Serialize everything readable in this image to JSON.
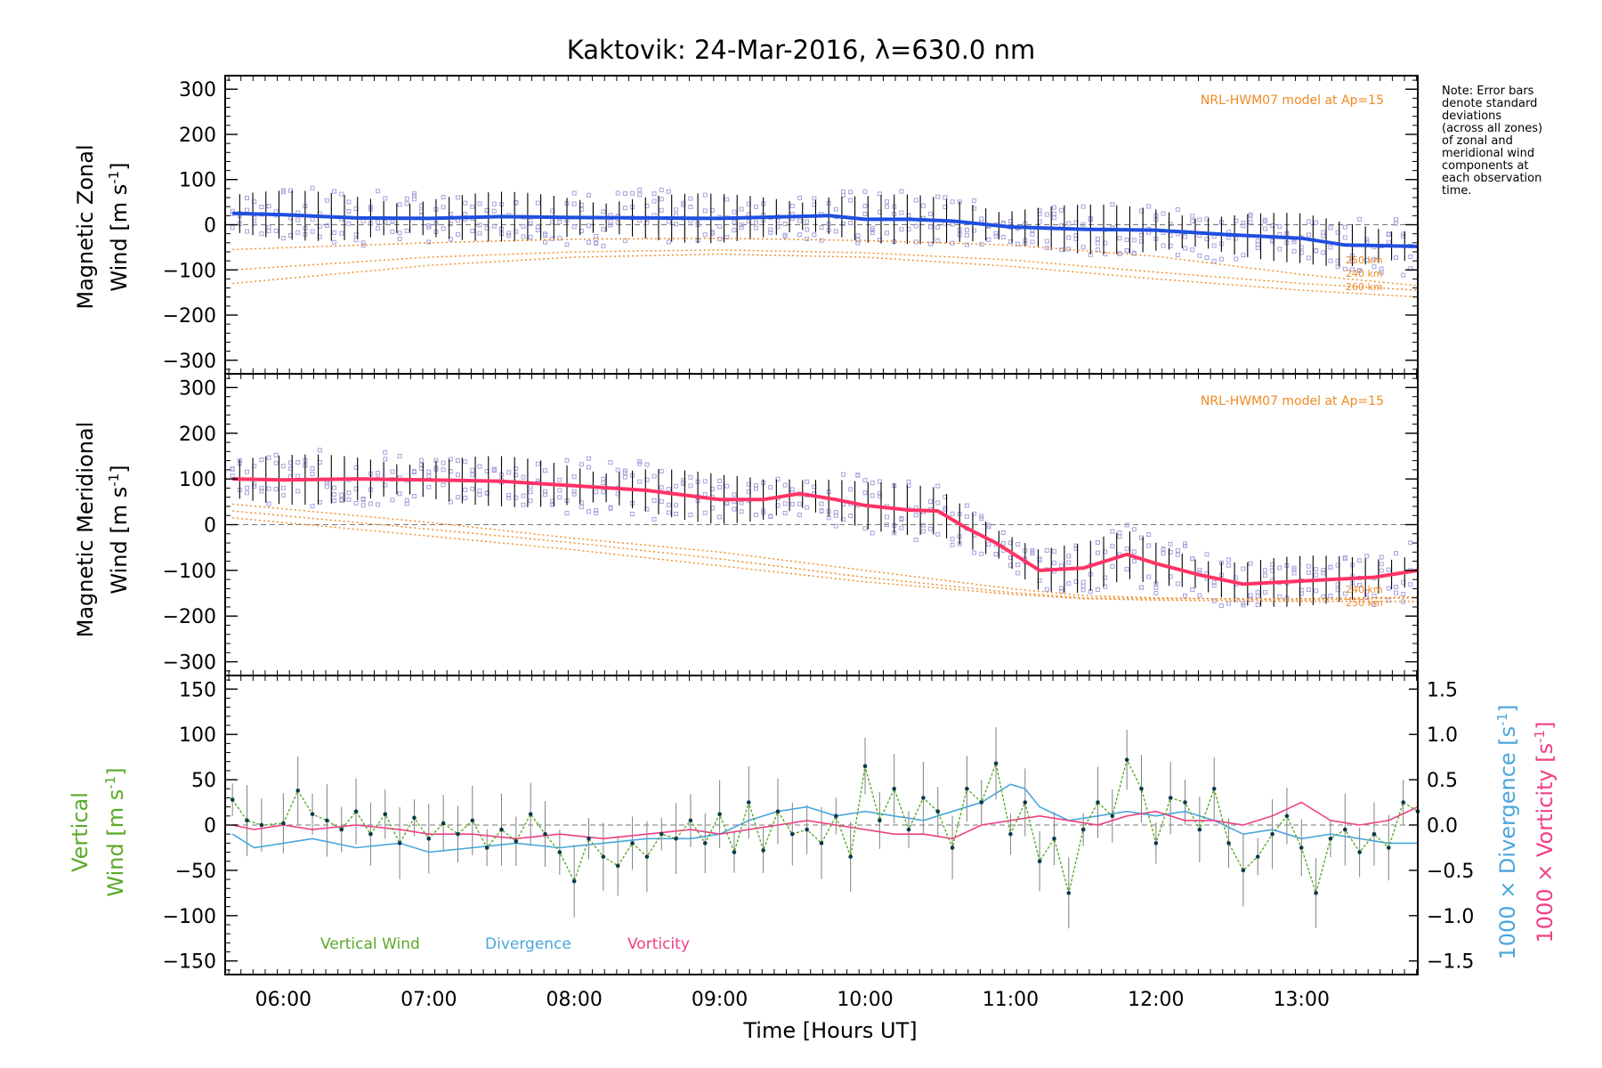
{
  "chart_data": [
    {
      "type": "line",
      "title": "Kaktovik: 24-Mar-2016, λ=630.0 nm",
      "ylabel_line1": "Magnetic Zonal",
      "ylabel_line2": "Wind [m s",
      "ylabel_sup": "-1",
      "ylabel_close": "]",
      "xlim": [
        5.6,
        13.8
      ],
      "ylim": [
        -330,
        330
      ],
      "yticks": [
        300,
        200,
        100,
        0,
        -100,
        -200,
        -300
      ],
      "ytick_labels": [
        "300",
        "200",
        "100",
        "0",
        "−100",
        "−200",
        "−300"
      ],
      "grid": false,
      "model_label": "NRL-HWM07 model at Ap=15",
      "model_altitude_labels": [
        "250 km",
        "240 km",
        "260 km"
      ],
      "note_lines": [
        "Note: Error bars",
        "denote standard",
        "deviations",
        "(across all zones)",
        "of zonal and",
        "meridional wind",
        "components at",
        "each observation",
        "time."
      ],
      "colors": {
        "mean": "#1f4fe0",
        "model": "#f08a24",
        "samples": "#a8a2dc",
        "errorbar": "#000000"
      },
      "series": [
        {
          "name": "mean zonal wind",
          "x": [
            5.65,
            6.0,
            6.5,
            7.0,
            7.5,
            8.0,
            8.5,
            9.0,
            9.5,
            9.75,
            10.0,
            10.3,
            10.6,
            11.0,
            11.5,
            12.0,
            12.5,
            13.0,
            13.3,
            13.8
          ],
          "y": [
            25,
            22,
            15,
            14,
            18,
            16,
            15,
            14,
            18,
            20,
            12,
            12,
            8,
            -5,
            -10,
            -12,
            -22,
            -30,
            -45,
            -48
          ]
        },
        {
          "name": "model-1",
          "x": [
            5.65,
            7,
            8,
            9,
            10,
            11,
            12,
            13,
            13.8
          ],
          "y": [
            -55,
            -40,
            -32,
            -30,
            -35,
            -45,
            -70,
            -110,
            -135
          ]
        },
        {
          "name": "model-2",
          "x": [
            5.65,
            7,
            8,
            9,
            10,
            11,
            12,
            13,
            13.8
          ],
          "y": [
            -100,
            -72,
            -60,
            -56,
            -62,
            -78,
            -105,
            -130,
            -145
          ]
        },
        {
          "name": "model-3",
          "x": [
            5.65,
            7,
            8,
            9,
            10,
            11,
            12,
            13,
            13.8
          ],
          "y": [
            -130,
            -90,
            -72,
            -65,
            -72,
            -92,
            -120,
            -145,
            -160
          ]
        }
      ]
    },
    {
      "type": "line",
      "ylabel_line1": "Magnetic Meridional",
      "ylabel_line2": "Wind [m s",
      "ylabel_sup": "-1",
      "ylabel_close": "]",
      "xlim": [
        5.6,
        13.8
      ],
      "ylim": [
        -330,
        330
      ],
      "yticks": [
        300,
        200,
        100,
        0,
        -100,
        -200,
        -300
      ],
      "ytick_labels": [
        "300",
        "200",
        "100",
        "0",
        "−100",
        "−200",
        "−300"
      ],
      "grid": false,
      "model_label": "NRL-HWM07 model at Ap=15",
      "model_altitude_labels": [
        "240 km",
        "250 km"
      ],
      "colors": {
        "mean": "#ff3366",
        "model": "#f08a24",
        "samples": "#a8a2dc",
        "errorbar": "#000000"
      },
      "series": [
        {
          "name": "mean meridional wind",
          "x": [
            5.65,
            6.0,
            6.5,
            7.0,
            7.5,
            8.0,
            8.5,
            9.0,
            9.3,
            9.55,
            9.8,
            10.0,
            10.3,
            10.5,
            10.7,
            10.9,
            11.2,
            11.5,
            11.8,
            12.0,
            12.3,
            12.6,
            12.9,
            13.2,
            13.5,
            13.8
          ],
          "y": [
            100,
            98,
            100,
            98,
            95,
            85,
            75,
            55,
            55,
            68,
            55,
            42,
            32,
            30,
            -8,
            -40,
            -100,
            -95,
            -65,
            -85,
            -110,
            -130,
            -125,
            -120,
            -115,
            -100
          ]
        },
        {
          "name": "model-1",
          "x": [
            5.65,
            7,
            8,
            9,
            10,
            11,
            11.5,
            12,
            13,
            13.8
          ],
          "y": [
            45,
            5,
            -30,
            -60,
            -100,
            -140,
            -155,
            -160,
            -165,
            -160
          ]
        },
        {
          "name": "model-2",
          "x": [
            5.65,
            7,
            8,
            9,
            10,
            11,
            11.5,
            12,
            13,
            13.8
          ],
          "y": [
            30,
            -10,
            -40,
            -75,
            -115,
            -148,
            -160,
            -162,
            -162,
            -158
          ]
        },
        {
          "name": "model-3",
          "x": [
            5.65,
            7,
            8,
            9,
            10,
            11,
            11.5,
            12,
            13,
            13.8
          ],
          "y": [
            15,
            -25,
            -55,
            -90,
            -125,
            -152,
            -162,
            -165,
            -168,
            -168
          ]
        }
      ]
    },
    {
      "type": "line",
      "xlabel": "Time [Hours UT]",
      "ylabel_line1": "Vertical",
      "ylabel_line2": "Wind [m s",
      "ylabel_sup": "-1",
      "ylabel_close": "]",
      "xlim": [
        5.6,
        13.8
      ],
      "xticks": [
        6,
        7,
        8,
        9,
        10,
        11,
        12,
        13
      ],
      "xtick_labels": [
        "06:00",
        "07:00",
        "08:00",
        "09:00",
        "10:00",
        "11:00",
        "12:00",
        "13:00"
      ],
      "ylim": [
        -165,
        165
      ],
      "yticks": [
        150,
        100,
        50,
        0,
        -50,
        -100,
        -150
      ],
      "ytick_labels": [
        "150",
        "100",
        "50",
        "0",
        "−50",
        "−100",
        "−150"
      ],
      "y2lim": [
        -1.65,
        1.65
      ],
      "y2ticks": [
        1.5,
        1.0,
        0.5,
        0.0,
        -0.5,
        -1.0,
        -1.5
      ],
      "y2tick_labels": [
        "1.5",
        "1.0",
        "0.5",
        "0.0",
        "−0.5",
        "−1.0",
        "−1.5"
      ],
      "y2label_div_text": "1000 × Divergence [s",
      "y2label_vor_text": "1000 × Vorticity [s",
      "y2label_sup": "-1",
      "y2label_close": "]",
      "grid": false,
      "legend": [
        "Vertical Wind",
        "Divergence",
        "Vorticity"
      ],
      "legend_position": "bottom-left",
      "colors": {
        "vertical": "#5aaa28",
        "divergence": "#4aa6dc",
        "vorticity": "#ef3f86",
        "points": "#0a3a4a",
        "errorbar": "#808080"
      },
      "series": [
        {
          "name": "Vertical Wind",
          "x": [
            5.65,
            5.75,
            5.85,
            6.0,
            6.1,
            6.2,
            6.3,
            6.4,
            6.5,
            6.6,
            6.7,
            6.8,
            6.9,
            7.0,
            7.1,
            7.2,
            7.3,
            7.4,
            7.5,
            7.6,
            7.7,
            7.8,
            7.9,
            8.0,
            8.1,
            8.2,
            8.3,
            8.4,
            8.5,
            8.6,
            8.7,
            8.8,
            8.9,
            9.0,
            9.1,
            9.2,
            9.3,
            9.4,
            9.5,
            9.6,
            9.7,
            9.8,
            9.9,
            10.0,
            10.1,
            10.2,
            10.3,
            10.4,
            10.5,
            10.6,
            10.7,
            10.8,
            10.9,
            11.0,
            11.1,
            11.2,
            11.3,
            11.4,
            11.5,
            11.6,
            11.7,
            11.8,
            11.9,
            12.0,
            12.1,
            12.2,
            12.3,
            12.4,
            12.5,
            12.6,
            12.7,
            12.8,
            12.9,
            13.0,
            13.1,
            13.2,
            13.3,
            13.4,
            13.5,
            13.6,
            13.7,
            13.8
          ],
          "y": [
            28,
            5,
            0,
            2,
            38,
            12,
            5,
            -5,
            15,
            -10,
            12,
            -20,
            8,
            -15,
            2,
            -10,
            5,
            -25,
            -5,
            -18,
            12,
            -10,
            -30,
            -62,
            -15,
            -35,
            -45,
            -20,
            -35,
            -10,
            -15,
            5,
            -20,
            12,
            -30,
            25,
            -28,
            15,
            -10,
            -5,
            -20,
            10,
            -35,
            65,
            5,
            40,
            -5,
            30,
            15,
            -25,
            40,
            25,
            68,
            -10,
            25,
            -40,
            -15,
            -75,
            -5,
            25,
            10,
            72,
            40,
            -20,
            30,
            25,
            -5,
            40,
            -20,
            -50,
            -35,
            -10,
            10,
            -25,
            -75,
            -15,
            -5,
            -30,
            -10,
            -25,
            25,
            15
          ]
        },
        {
          "name": "Divergence",
          "x": [
            5.65,
            5.8,
            6.0,
            6.2,
            6.5,
            6.8,
            7.0,
            7.3,
            7.6,
            7.9,
            8.2,
            8.5,
            8.8,
            9.0,
            9.2,
            9.4,
            9.6,
            9.8,
            10.0,
            10.2,
            10.4,
            10.6,
            10.8,
            11.0,
            11.1,
            11.2,
            11.4,
            11.6,
            11.8,
            12.0,
            12.2,
            12.4,
            12.6,
            12.8,
            13.0,
            13.2,
            13.4,
            13.6,
            13.8
          ],
          "y": [
            -0.1,
            -0.25,
            -0.2,
            -0.15,
            -0.25,
            -0.2,
            -0.3,
            -0.25,
            -0.2,
            -0.25,
            -0.2,
            -0.15,
            -0.15,
            -0.1,
            0.05,
            0.15,
            0.2,
            0.1,
            0.15,
            0.1,
            0.05,
            0.15,
            0.25,
            0.45,
            0.4,
            0.2,
            0.05,
            0.1,
            0.15,
            0.1,
            0.15,
            0.05,
            -0.1,
            -0.05,
            -0.15,
            -0.1,
            -0.15,
            -0.2,
            -0.2
          ]
        },
        {
          "name": "Vorticity",
          "x": [
            5.65,
            5.8,
            6.0,
            6.2,
            6.5,
            6.8,
            7.0,
            7.3,
            7.6,
            7.9,
            8.2,
            8.5,
            8.8,
            9.0,
            9.2,
            9.4,
            9.6,
            9.8,
            10.0,
            10.2,
            10.4,
            10.6,
            10.8,
            11.0,
            11.2,
            11.4,
            11.6,
            11.8,
            12.0,
            12.2,
            12.4,
            12.6,
            12.8,
            13.0,
            13.2,
            13.4,
            13.6,
            13.8
          ],
          "y": [
            0.0,
            -0.05,
            0.0,
            -0.05,
            0.0,
            -0.05,
            -0.1,
            -0.1,
            -0.15,
            -0.1,
            -0.15,
            -0.1,
            -0.05,
            -0.1,
            -0.05,
            0.0,
            0.05,
            0.0,
            -0.05,
            -0.1,
            -0.1,
            -0.15,
            0.0,
            0.05,
            0.1,
            0.05,
            0.0,
            0.1,
            0.15,
            0.05,
            0.05,
            0.0,
            0.1,
            0.25,
            0.05,
            0.0,
            0.05,
            0.2
          ]
        }
      ]
    }
  ]
}
